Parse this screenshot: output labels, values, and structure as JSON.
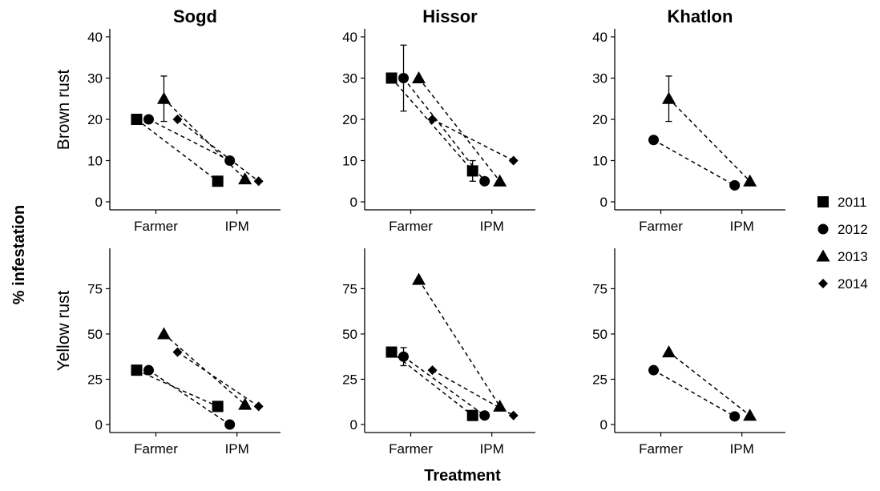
{
  "chart_data": {
    "type": "scatter",
    "xlabel": "Treatment",
    "ylabel": "% infestation",
    "columns": [
      "Sogd",
      "Hissor",
      "Khatlon"
    ],
    "rows": [
      "Brown rust",
      "Yellow rust"
    ],
    "categories": [
      "Farmer",
      "IPM"
    ],
    "years": [
      "2011",
      "2012",
      "2013",
      "2014"
    ],
    "ylim_by_row": [
      [
        0,
        40
      ],
      [
        0,
        92
      ]
    ],
    "yticks_by_row": [
      [
        0,
        10,
        20,
        30,
        40
      ],
      [
        0,
        25,
        50,
        75
      ]
    ],
    "legend_position": "right",
    "grid": false,
    "panels": [
      {
        "column": "Sogd",
        "row": "Brown rust",
        "series": [
          {
            "year": "2011",
            "farmer": 20,
            "ipm": 5
          },
          {
            "year": "2012",
            "farmer": 20,
            "ipm": 10
          },
          {
            "year": "2013",
            "farmer": 25,
            "ipm": 5.5,
            "farmer_err": [
              19.5,
              30.5
            ]
          },
          {
            "year": "2014",
            "farmer": 20,
            "ipm": 5
          }
        ]
      },
      {
        "column": "Hissor",
        "row": "Brown rust",
        "series": [
          {
            "year": "2011",
            "farmer": 30,
            "ipm": 7.5,
            "ipm_err": [
              5,
              10
            ]
          },
          {
            "year": "2012",
            "farmer": 30,
            "ipm": 5,
            "farmer_err": [
              22,
              38
            ]
          },
          {
            "year": "2013",
            "farmer": 30,
            "ipm": 5
          },
          {
            "year": "2014",
            "farmer": 20,
            "ipm": 10
          }
        ]
      },
      {
        "column": "Khatlon",
        "row": "Brown rust",
        "series": [
          {
            "year": "2012",
            "farmer": 15,
            "ipm": 4
          },
          {
            "year": "2013",
            "farmer": 25,
            "ipm": 5,
            "farmer_err": [
              19.5,
              30.5
            ]
          }
        ]
      },
      {
        "column": "Sogd",
        "row": "Yellow rust",
        "series": [
          {
            "year": "2011",
            "farmer": 30,
            "ipm": 10
          },
          {
            "year": "2012",
            "farmer": 30,
            "ipm": 0
          },
          {
            "year": "2013",
            "farmer": 50,
            "ipm": 11
          },
          {
            "year": "2014",
            "farmer": 40,
            "ipm": 10
          }
        ]
      },
      {
        "column": "Hissor",
        "row": "Yellow rust",
        "series": [
          {
            "year": "2011",
            "farmer": 40,
            "ipm": 5
          },
          {
            "year": "2012",
            "farmer": 37.5,
            "ipm": 5,
            "farmer_err": [
              32.5,
              42.5
            ]
          },
          {
            "year": "2013",
            "farmer": 80,
            "ipm": 10
          },
          {
            "year": "2014",
            "farmer": 30,
            "ipm": 5
          }
        ]
      },
      {
        "column": "Khatlon",
        "row": "Yellow rust",
        "series": [
          {
            "year": "2012",
            "farmer": 30,
            "ipm": 4.5
          },
          {
            "year": "2013",
            "farmer": 40,
            "ipm": 5
          }
        ]
      }
    ]
  },
  "legend": {
    "entries": [
      {
        "label": "2011",
        "shape": "square"
      },
      {
        "label": "2012",
        "shape": "circle"
      },
      {
        "label": "2013",
        "shape": "triangle"
      },
      {
        "label": "2014",
        "shape": "diamond"
      }
    ]
  }
}
